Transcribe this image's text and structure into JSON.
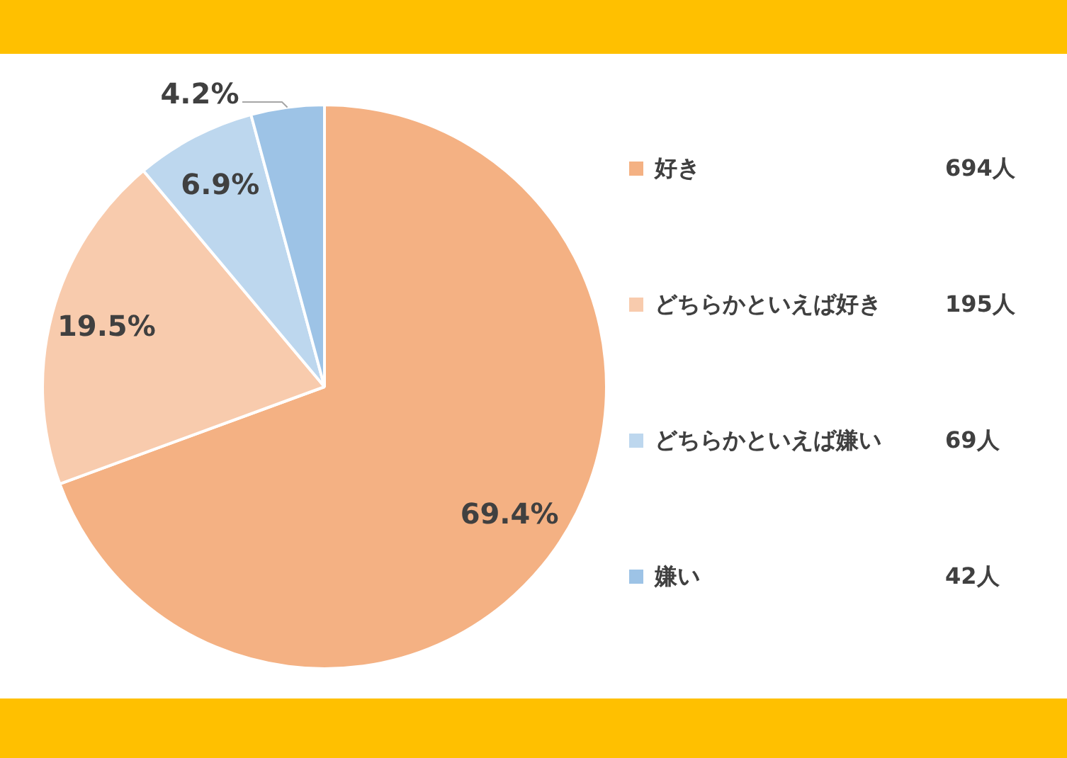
{
  "chart_data": {
    "type": "pie",
    "categories": [
      "好き",
      "どちらかといえば好き",
      "どちらかといえば嫌い",
      "嫌い"
    ],
    "values": [
      69.4,
      19.5,
      6.9,
      4.2
    ],
    "colors": [
      "#f4b183",
      "#f8cbad",
      "#bdd7ee",
      "#9dc3e6"
    ],
    "value_labels": [
      "69.4%",
      "19.5%",
      "6.9%",
      "4.2%"
    ],
    "annotations": [
      "694人",
      "195人",
      "69人",
      "42人"
    ],
    "legend": "right"
  }
}
